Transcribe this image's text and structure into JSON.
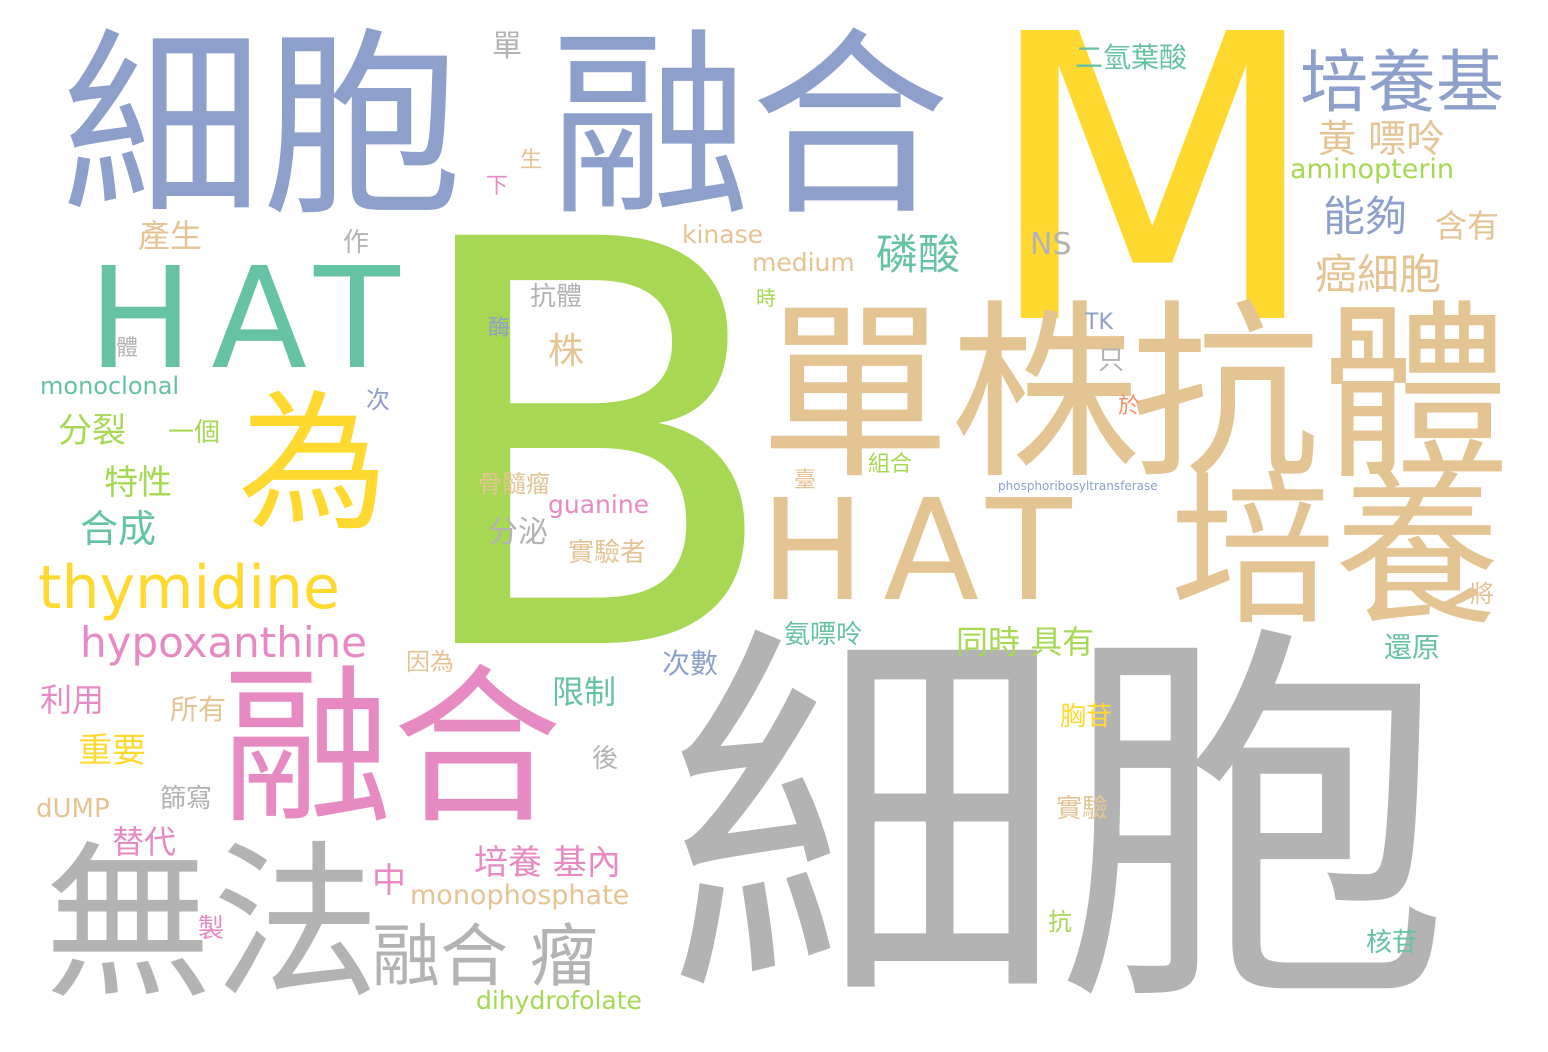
{
  "words": [
    {
      "text": "細胞",
      "color": "#b3b3b3"
    },
    {
      "text": "B",
      "color": "#a6d854"
    },
    {
      "text": "M",
      "color": "#ffd92f"
    },
    {
      "text": "細胞",
      "color": "#8da0cb"
    },
    {
      "text": "融合",
      "color": "#8da0cb"
    },
    {
      "text": "單株",
      "color": "#e5c494"
    },
    {
      "text": "抗體",
      "color": "#e5c494"
    },
    {
      "text": "HAT",
      "color": "#e5c494"
    },
    {
      "text": "培養",
      "color": "#e5c494"
    },
    {
      "text": "HAT",
      "color": "#66c2a5"
    },
    {
      "text": "為",
      "color": "#ffd92f"
    },
    {
      "text": "融合",
      "color": "#e78ac3"
    },
    {
      "text": "無法",
      "color": "#b3b3b3"
    },
    {
      "text": "融合 瘤",
      "color": "#b3b3b3"
    },
    {
      "text": "thymidine",
      "color": "#ffd92f"
    },
    {
      "text": "hypoxanthine",
      "color": "#e78ac3"
    },
    {
      "text": "培養基",
      "color": "#8da0cb"
    },
    {
      "text": "二氫葉酸",
      "color": "#66c2a5"
    },
    {
      "text": "黃 嘌呤",
      "color": "#e5c494"
    },
    {
      "text": "aminopterin",
      "color": "#a6d854"
    },
    {
      "text": "能夠",
      "color": "#8da0cb"
    },
    {
      "text": "含有",
      "color": "#e5c494"
    },
    {
      "text": "癌細胞",
      "color": "#e5c494"
    },
    {
      "text": "磷酸",
      "color": "#66c2a5"
    },
    {
      "text": "NS",
      "color": "#b3b3b3"
    },
    {
      "text": "TK",
      "color": "#8da0cb"
    },
    {
      "text": "kinase",
      "color": "#e5c494"
    },
    {
      "text": "medium",
      "color": "#e5c494"
    },
    {
      "text": "產生",
      "color": "#e5c494"
    },
    {
      "text": "作",
      "color": "#b3b3b3"
    },
    {
      "text": "單",
      "color": "#b3b3b3"
    },
    {
      "text": "生",
      "color": "#e5c494"
    },
    {
      "text": "下",
      "color": "#e78ac3"
    },
    {
      "text": "抗體",
      "color": "#b3b3b3"
    },
    {
      "text": "酶",
      "color": "#8da0cb"
    },
    {
      "text": "株",
      "color": "#e5c494"
    },
    {
      "text": "時",
      "color": "#a6d854"
    },
    {
      "text": "只",
      "color": "#b3b3b3"
    },
    {
      "text": "於",
      "color": "#fc8d62"
    },
    {
      "text": "monoclonal",
      "color": "#66c2a5"
    },
    {
      "text": "分裂",
      "color": "#a6d854"
    },
    {
      "text": "一個",
      "color": "#a6d854"
    },
    {
      "text": "次",
      "color": "#8da0cb"
    },
    {
      "text": "特性",
      "color": "#a6d854"
    },
    {
      "text": "合成",
      "color": "#66c2a5"
    },
    {
      "text": "組合",
      "color": "#a6d854"
    },
    {
      "text": "臺",
      "color": "#e5c494"
    },
    {
      "text": "骨髓瘤",
      "color": "#e5c494"
    },
    {
      "text": "guanine",
      "color": "#e78ac3"
    },
    {
      "text": "分泌",
      "color": "#b3b3b3"
    },
    {
      "text": "實驗者",
      "color": "#e5c494"
    },
    {
      "text": "氨嘌呤",
      "color": "#66c2a5"
    },
    {
      "text": "同時 具有",
      "color": "#a6d854"
    },
    {
      "text": "還原",
      "color": "#66c2a5"
    },
    {
      "text": "將",
      "color": "#e5c494"
    },
    {
      "text": "因為",
      "color": "#e5c494"
    },
    {
      "text": "次數",
      "color": "#8da0cb"
    },
    {
      "text": "限制",
      "color": "#66c2a5"
    },
    {
      "text": "利用",
      "color": "#e78ac3"
    },
    {
      "text": "所有",
      "color": "#e5c494"
    },
    {
      "text": "重要",
      "color": "#ffd92f"
    },
    {
      "text": "後",
      "color": "#b3b3b3"
    },
    {
      "text": "胸苷",
      "color": "#ffd92f"
    },
    {
      "text": "dUMP",
      "color": "#e5c494"
    },
    {
      "text": "篩寫",
      "color": "#b3b3b3"
    },
    {
      "text": "實驗",
      "color": "#e5c494"
    },
    {
      "text": "替代",
      "color": "#e78ac3"
    },
    {
      "text": "培養 基內",
      "color": "#e78ac3"
    },
    {
      "text": "中",
      "color": "#e78ac3"
    },
    {
      "text": "monophosphate",
      "color": "#e5c494"
    },
    {
      "text": "核苷",
      "color": "#66c2a5"
    },
    {
      "text": "製",
      "color": "#e78ac3"
    },
    {
      "text": "抗",
      "color": "#a6d854"
    },
    {
      "text": "dihydrofolate",
      "color": "#a6d854"
    },
    {
      "text": "體",
      "color": "#b3b3b3"
    },
    {
      "text": "phosphoribosyltransferase",
      "color": "#8da0cb"
    }
  ]
}
